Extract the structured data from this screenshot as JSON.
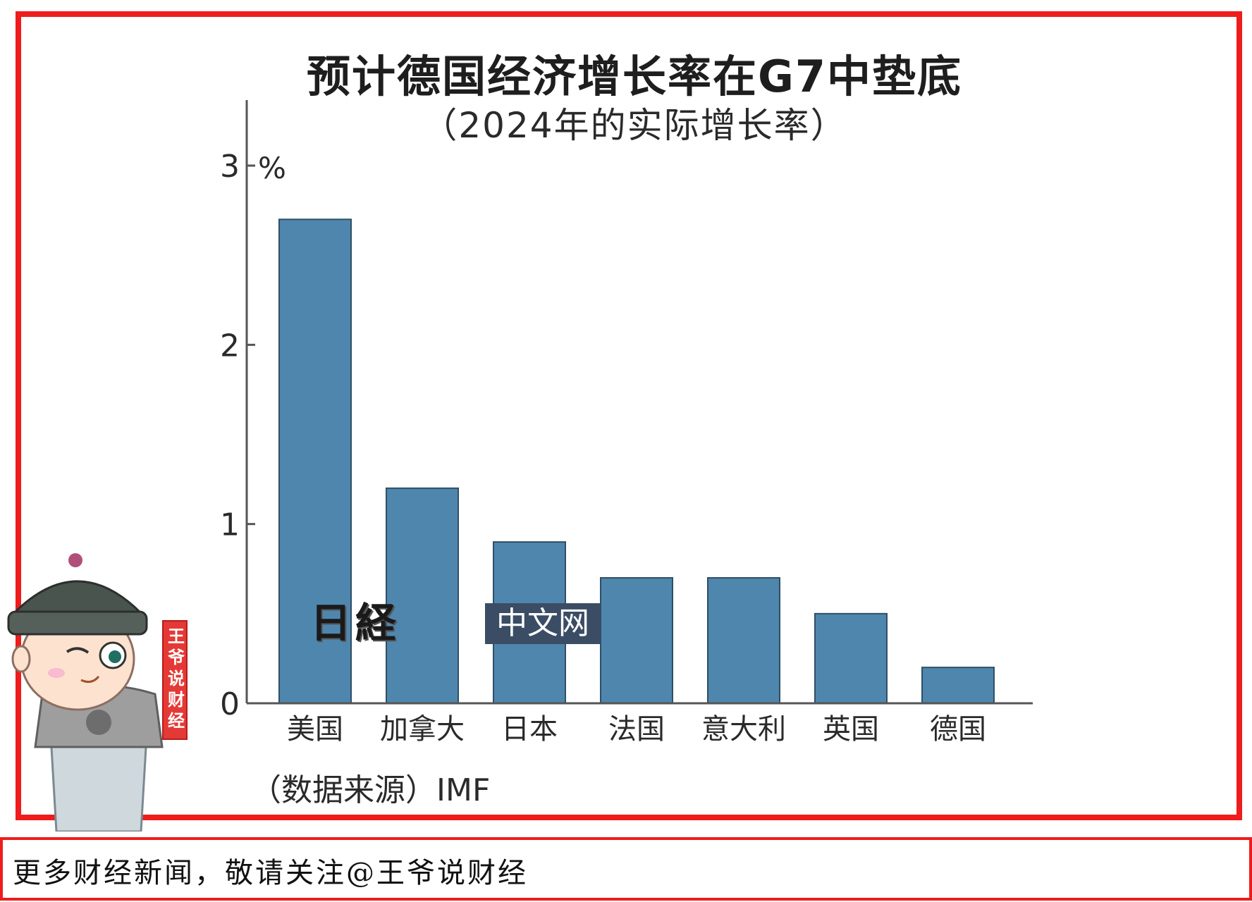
{
  "chart_data": {
    "type": "bar",
    "title": "预计德国经济增长率在G7中垫底",
    "subtitle": "（2024年的实际增长率）",
    "ylabel": "%",
    "categories": [
      "美国",
      "加拿大",
      "日本",
      "法国",
      "意大利",
      "英国",
      "德国"
    ],
    "values": [
      2.7,
      1.2,
      0.9,
      0.7,
      0.7,
      0.5,
      0.2
    ],
    "ylim": [
      0,
      3.3
    ],
    "yticks": [
      "0",
      "1",
      "2",
      "3"
    ],
    "grid": false,
    "bar_color": "#4f86ad",
    "source": "（数据来源）IMF"
  },
  "watermark": {
    "logo": "日経",
    "box": "中文网"
  },
  "seal": {
    "text": "王爷说财经"
  },
  "footer": {
    "text": "更多财经新闻，敬请关注@王爷说财经"
  },
  "colors": {
    "frame": "#ee1c1c",
    "bar": "#4f86ad",
    "axis": "#555555"
  }
}
